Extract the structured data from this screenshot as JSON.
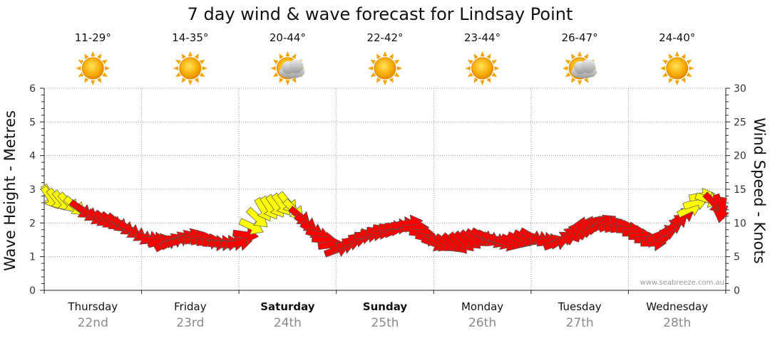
{
  "chart_data": {
    "type": "scatter",
    "title": "7 day wind & wave forecast for Lindsay Point",
    "ylabel_left": "Wave Height - Metres",
    "ylabel_right": "Wind Speed - Knots",
    "ylim_left": [
      0,
      6
    ],
    "ylim_right": [
      0,
      30
    ],
    "yticks_left": [
      "0",
      "1",
      "2",
      "3",
      "4",
      "5",
      "6"
    ],
    "yticks_right": [
      "0",
      "5",
      "10",
      "15",
      "20",
      "25",
      "30"
    ],
    "grid": true,
    "credit": "www.seabreeze.com.au",
    "days": [
      {
        "name": "Thursday",
        "date": "22nd",
        "temp": "11-29°",
        "weather": "sunny",
        "bold": false
      },
      {
        "name": "Friday",
        "date": "23rd",
        "temp": "14-35°",
        "weather": "sunny",
        "bold": false
      },
      {
        "name": "Saturday",
        "date": "24th",
        "temp": "20-44°",
        "weather": "partly-cloudy",
        "bold": true
      },
      {
        "name": "Sunday",
        "date": "25th",
        "temp": "22-42°",
        "weather": "sunny",
        "bold": true
      },
      {
        "name": "Monday",
        "date": "26th",
        "temp": "23-44°",
        "weather": "sunny",
        "bold": false
      },
      {
        "name": "Tuesday",
        "date": "27th",
        "temp": "26-47°",
        "weather": "partly-cloudy",
        "bold": false
      },
      {
        "name": "Wednesday",
        "date": "28th",
        "temp": "24-40°",
        "weather": "sunny",
        "bold": false
      }
    ],
    "wind_series": {
      "name": "Wind Speed (knots) with direction",
      "hours": [
        0,
        6,
        12,
        18,
        24,
        30,
        36,
        42,
        48,
        54,
        60,
        66,
        72,
        78,
        84,
        90,
        96,
        102,
        108,
        114,
        120,
        126,
        132,
        138,
        144,
        150,
        156,
        162,
        168
      ],
      "speed_knots": [
        14,
        13,
        11,
        10,
        8,
        7,
        8,
        7,
        7,
        12,
        13,
        9,
        6,
        8,
        9,
        10,
        7,
        7,
        8,
        7,
        8,
        7,
        9,
        10,
        9,
        7,
        10,
        14,
        12
      ],
      "direction_deg": [
        330,
        315,
        300,
        310,
        300,
        240,
        250,
        270,
        260,
        330,
        320,
        300,
        250,
        260,
        280,
        260,
        290,
        320,
        300,
        290,
        300,
        250,
        200,
        240,
        270,
        270,
        230,
        260,
        10
      ],
      "category": [
        "light",
        "light",
        "strong",
        "strong",
        "strong",
        "strong",
        "strong",
        "strong",
        "strong",
        "light",
        "light",
        "strong",
        "strong",
        "strong",
        "strong",
        "strong",
        "strong",
        "strong",
        "strong",
        "strong",
        "strong",
        "strong",
        "strong",
        "strong",
        "strong",
        "strong",
        "strong",
        "light",
        "strong"
      ]
    },
    "colors": {
      "strong": "#ff0000",
      "light": "#ffff00",
      "outline": "#555555",
      "grid": "#999999"
    }
  }
}
